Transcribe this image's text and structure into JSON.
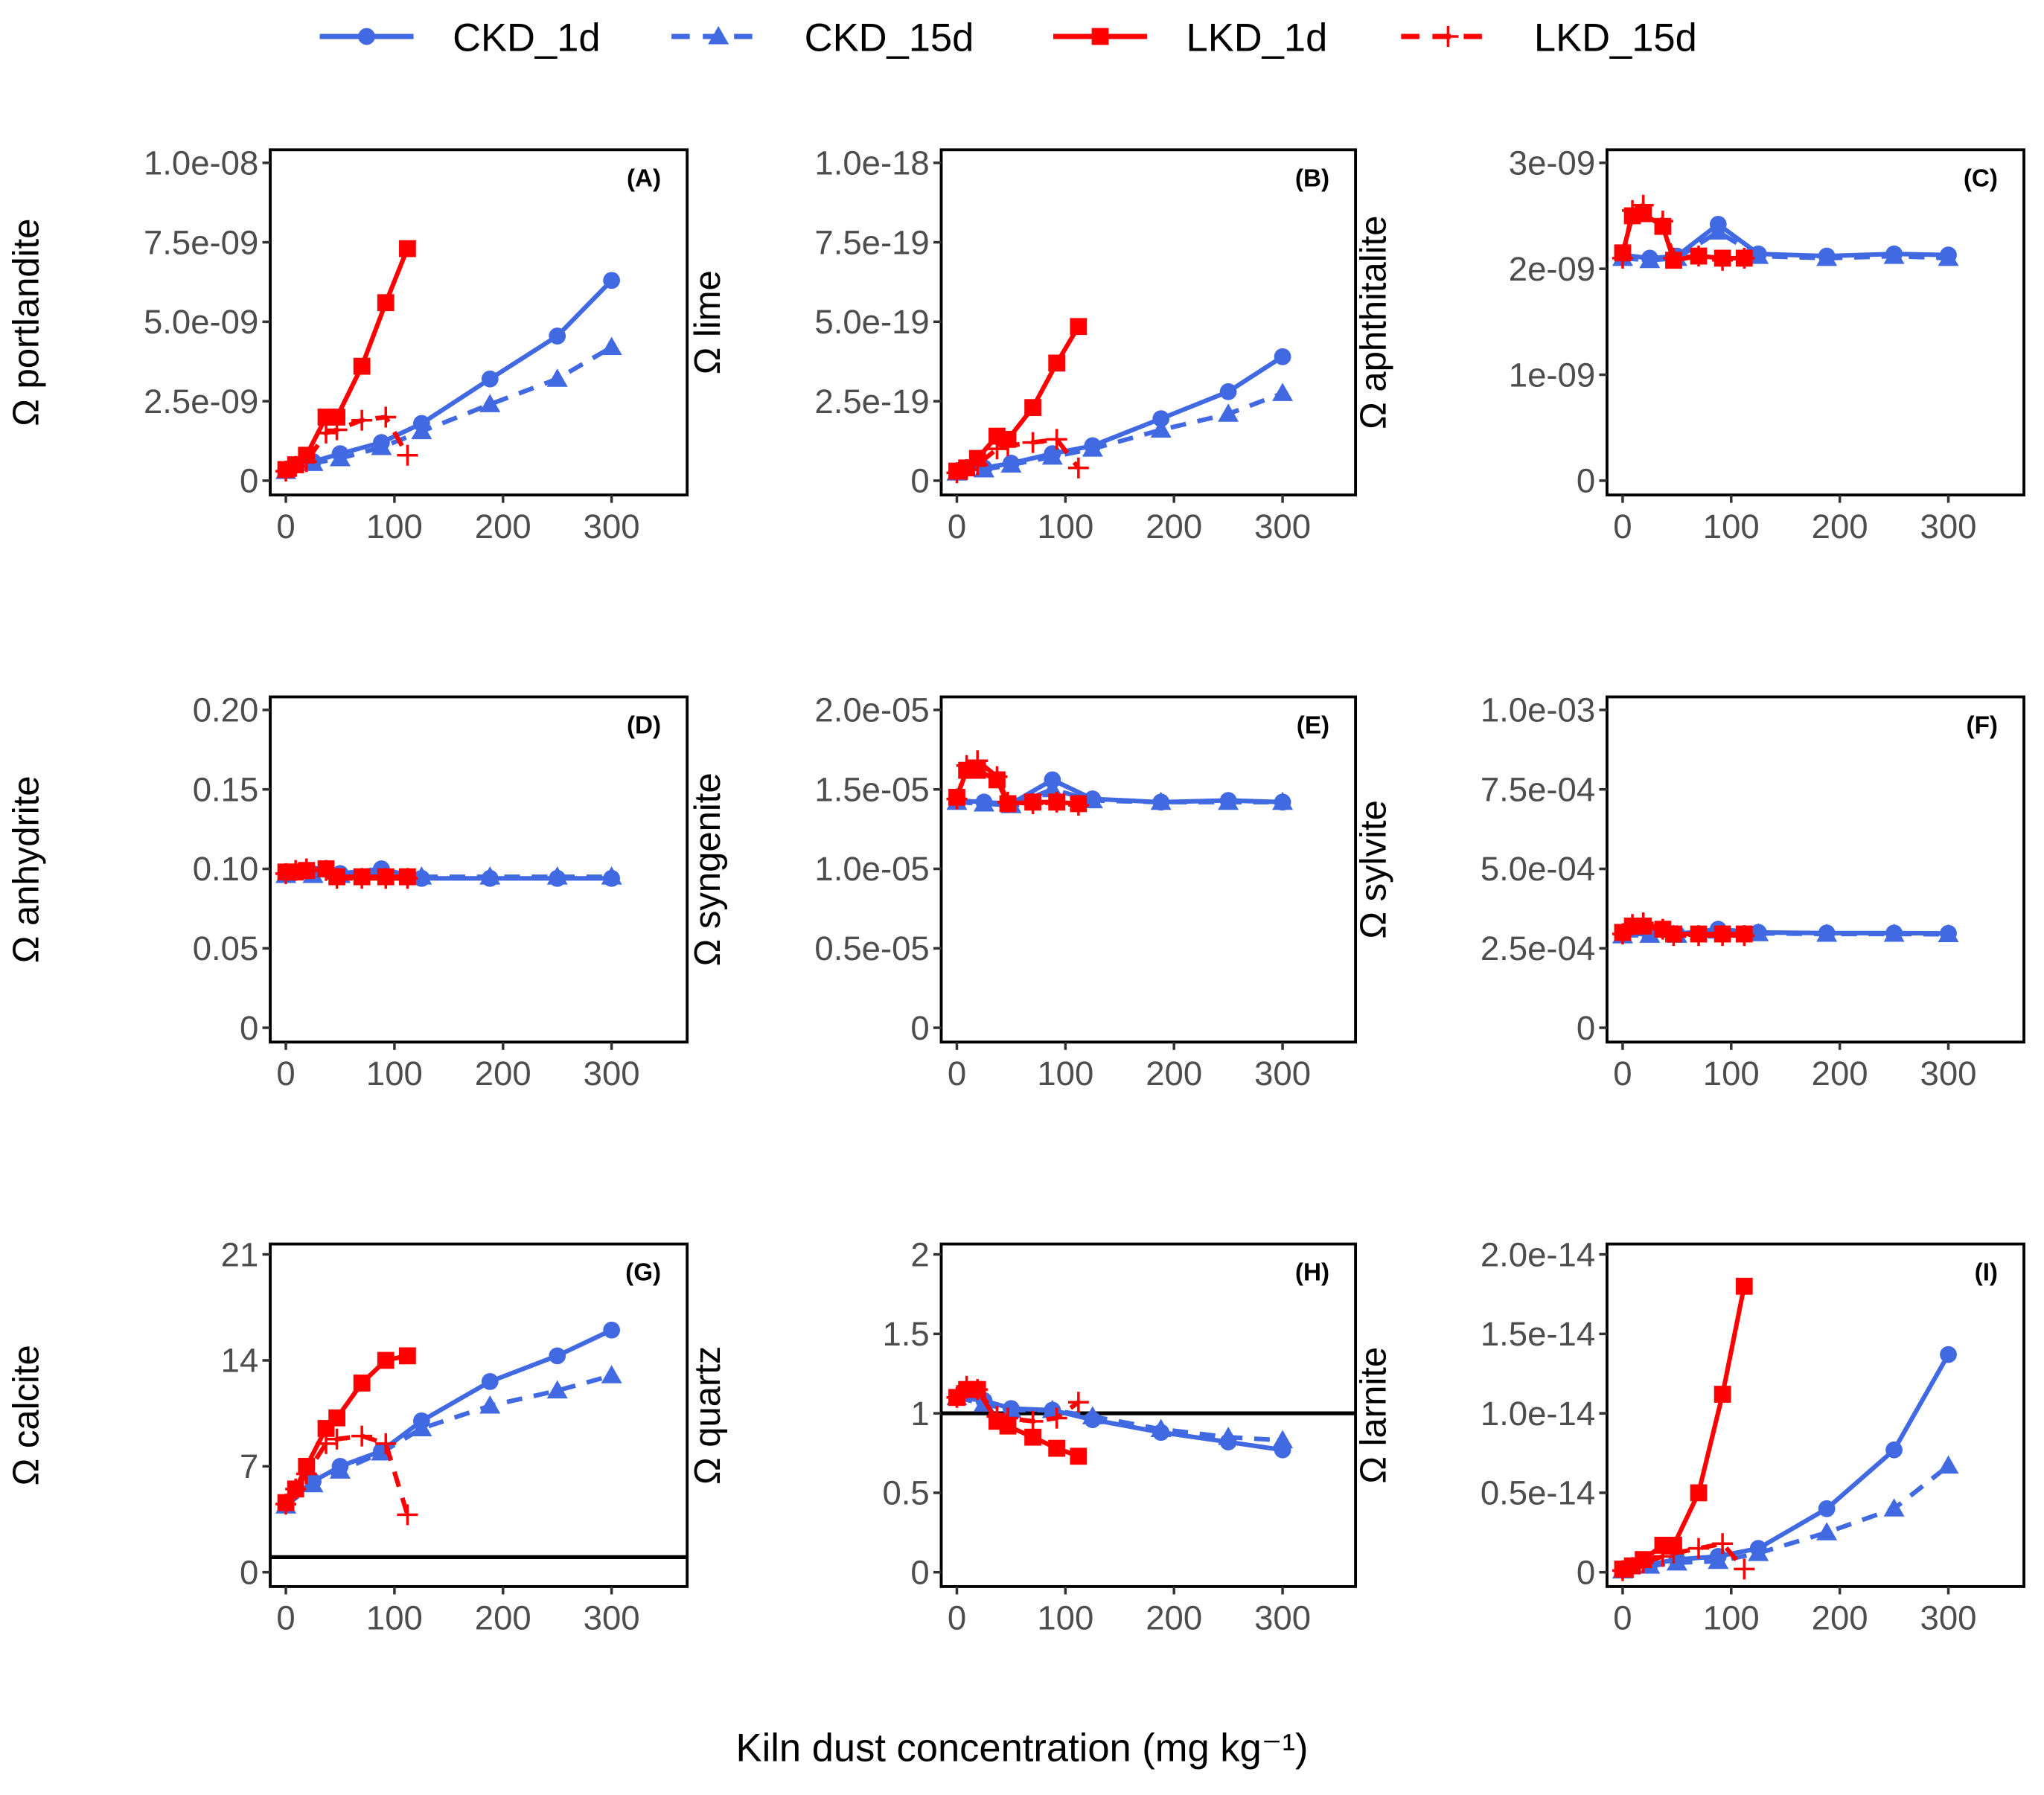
{
  "legend": {
    "placement": "top",
    "entries": [
      {
        "name": "CKD_1d",
        "color": "#4169E1",
        "marker": "circle",
        "line": "solid"
      },
      {
        "name": "CKD_15d",
        "color": "#4169E1",
        "marker": "triangle",
        "line": "dashed"
      },
      {
        "name": "LKD_1d",
        "color": "#FF0000",
        "marker": "square",
        "line": "solid"
      },
      {
        "name": "LKD_15d",
        "color": "#FF0000",
        "marker": "plus",
        "line": "dashed"
      }
    ]
  },
  "xlabel": "Kiln dust concentration (mg kg⁻¹)",
  "chart_data": {
    "type": "line",
    "grid": false,
    "x_ticks": [
      0,
      100,
      200,
      300
    ],
    "x_tick_labels": [
      "0",
      "100",
      "200",
      "300"
    ],
    "xlim": [
      -15,
      365
    ],
    "x": {
      "CKD": [
        0,
        25,
        50,
        88,
        125,
        188,
        250,
        300
      ],
      "LKD": [
        0,
        9,
        19,
        37,
        47,
        70,
        92,
        112
      ]
    },
    "panels": [
      {
        "tag": "(A)",
        "ylabel": "Ω portlandite",
        "ylim": [
          0,
          1e-08
        ],
        "yticks": [
          0,
          2.5e-09,
          5e-09,
          7.5e-09,
          1e-08
        ],
        "ytick_labels": [
          "0",
          "2.5e-09",
          "5.0e-09",
          "7.5e-09",
          "1.0e-08"
        ],
        "series": {
          "CKD_1d": [
            3.5e-10,
            6e-10,
            8.5e-10,
            1.2e-09,
            1.8e-09,
            3.2e-09,
            4.55e-09,
            6.3e-09
          ],
          "CKD_15d": [
            3e-10,
            5.5e-10,
            7e-10,
            1.05e-09,
            1.55e-09,
            2.4e-09,
            3.2e-09,
            4.2e-09
          ],
          "LKD_1d": [
            3.5e-10,
            5e-10,
            8e-10,
            2e-09,
            2e-09,
            3.6e-09,
            5.6e-09,
            7.3e-09
          ],
          "LKD_15d": [
            3e-10,
            4.5e-10,
            6e-10,
            1.5e-09,
            1.6e-09,
            1.9e-09,
            2e-09,
            8e-10
          ]
        }
      },
      {
        "tag": "(B)",
        "ylabel": "Ω lime",
        "ylim": [
          0,
          1e-18
        ],
        "yticks": [
          0,
          2.5e-19,
          5e-19,
          7.5e-19,
          1e-18
        ],
        "ytick_labels": [
          "0",
          "2.5e-19",
          "5.0e-19",
          "7.5e-19",
          "1.0e-18"
        ],
        "series": {
          "CKD_1d": [
            3e-20,
            4e-20,
            5.5e-20,
            8.5e-20,
            1.1e-19,
            1.95e-19,
            2.8e-19,
            3.9e-19
          ],
          "CKD_15d": [
            2.5e-20,
            3.5e-20,
            5e-20,
            7.5e-20,
            1e-19,
            1.6e-19,
            2.1e-19,
            2.75e-19
          ],
          "LKD_1d": [
            3e-20,
            4e-20,
            7e-20,
            1.4e-19,
            1.3e-19,
            2.3e-19,
            3.7e-19,
            4.85e-19
          ],
          "LKD_15d": [
            2.5e-20,
            3.5e-20,
            5e-20,
            1e-19,
            1.1e-19,
            1.2e-19,
            1.3e-19,
            4e-20
          ]
        }
      },
      {
        "tag": "(C)",
        "ylabel": "Ω aphthitalite",
        "ylim": [
          0,
          3e-09
        ],
        "yticks": [
          0,
          1e-09,
          2e-09,
          3e-09
        ],
        "ytick_labels": [
          "0",
          "1e-09",
          "2e-09",
          "3e-09"
        ],
        "series": {
          "CKD_1d": [
            2.13e-09,
            2.1e-09,
            2.12e-09,
            2.42e-09,
            2.14e-09,
            2.12e-09,
            2.14e-09,
            2.13e-09
          ],
          "CKD_15d": [
            2.1e-09,
            2.08e-09,
            2.1e-09,
            2.35e-09,
            2.12e-09,
            2.1e-09,
            2.12e-09,
            2.1e-09
          ],
          "LKD_1d": [
            2.15e-09,
            2.5e-09,
            2.52e-09,
            2.4e-09,
            2.08e-09,
            2.12e-09,
            2.1e-09,
            2.1e-09
          ],
          "LKD_15d": [
            2.1e-09,
            2.55e-09,
            2.6e-09,
            2.45e-09,
            2.1e-09,
            2.12e-09,
            2.08e-09,
            2.1e-09
          ]
        }
      },
      {
        "tag": "(D)",
        "ylabel": "Ω anhydrite",
        "ylim": [
          0,
          0.2
        ],
        "yticks": [
          0,
          0.05,
          0.1,
          0.15,
          0.2
        ],
        "ytick_labels": [
          "0",
          "0.05",
          "0.10",
          "0.15",
          "0.20"
        ],
        "series": {
          "CKD_1d": [
            0.097,
            0.097,
            0.097,
            0.1,
            0.094,
            0.094,
            0.094,
            0.094
          ],
          "CKD_15d": [
            0.096,
            0.096,
            0.096,
            0.098,
            0.095,
            0.095,
            0.095,
            0.095
          ],
          "LKD_1d": [
            0.098,
            0.098,
            0.099,
            0.1,
            0.095,
            0.095,
            0.095,
            0.095
          ],
          "LKD_15d": [
            0.097,
            0.099,
            0.1,
            0.099,
            0.094,
            0.094,
            0.094,
            0.094
          ]
        }
      },
      {
        "tag": "(E)",
        "ylabel": "Ω syngenite",
        "ylim": [
          0,
          2e-05
        ],
        "yticks": [
          0,
          5e-06,
          1e-05,
          1.5e-05,
          2e-05
        ],
        "ytick_labels": [
          "0",
          "0.5e-05",
          "1.0e-05",
          "1.5e-05",
          "2.0e-05"
        ],
        "series": {
          "CKD_1d": [
            1.43e-05,
            1.42e-05,
            1.41e-05,
            1.56e-05,
            1.44e-05,
            1.42e-05,
            1.43e-05,
            1.42e-05
          ],
          "CKD_15d": [
            1.42e-05,
            1.41e-05,
            1.4e-05,
            1.5e-05,
            1.43e-05,
            1.42e-05,
            1.42e-05,
            1.42e-05
          ],
          "LKD_1d": [
            1.45e-05,
            1.62e-05,
            1.62e-05,
            1.56e-05,
            1.41e-05,
            1.42e-05,
            1.42e-05,
            1.41e-05
          ],
          "LKD_15d": [
            1.44e-05,
            1.65e-05,
            1.68e-05,
            1.58e-05,
            1.42e-05,
            1.41e-05,
            1.42e-05,
            1.4e-05
          ]
        }
      },
      {
        "tag": "(F)",
        "ylabel": "Ω sylvite",
        "ylim": [
          0,
          0.001
        ],
        "yticks": [
          0,
          0.00025,
          0.0005,
          0.00075,
          0.001
        ],
        "ytick_labels": [
          "0",
          "2.5e-04",
          "5.0e-04",
          "7.5e-04",
          "1.0e-03"
        ],
        "series": {
          "CKD_1d": [
            0.000295,
            0.000295,
            0.000295,
            0.00031,
            0.0003,
            0.000298,
            0.000298,
            0.000297
          ],
          "CKD_15d": [
            0.00029,
            0.000292,
            0.000292,
            0.000305,
            0.000297,
            0.000295,
            0.000295,
            0.000294
          ],
          "LKD_1d": [
            0.0003,
            0.00032,
            0.00032,
            0.00031,
            0.000295,
            0.000295,
            0.000295,
            0.000295
          ],
          "LKD_15d": [
            0.000295,
            0.000325,
            0.00033,
            0.00031,
            0.00029,
            0.00029,
            0.00029,
            0.00029
          ]
        }
      },
      {
        "tag": "(G)",
        "ylabel": "Ω calcite",
        "ylim": [
          0,
          21
        ],
        "hline": 1,
        "yticks": [
          0,
          7,
          14,
          21
        ],
        "ytick_labels": [
          "0",
          "7",
          "14",
          "21"
        ],
        "series": {
          "CKD_1d": [
            4.5,
            6,
            7,
            8,
            10,
            12.6,
            14.3,
            16
          ],
          "CKD_15d": [
            4.4,
            5.8,
            6.7,
            7.9,
            9.5,
            11,
            12,
            13
          ],
          "LKD_1d": [
            4.6,
            5.5,
            7,
            9.5,
            10.2,
            12.5,
            14,
            14.3
          ],
          "LKD_15d": [
            4.5,
            5.5,
            6.5,
            8.5,
            8.8,
            9,
            8.5,
            3.8
          ]
        }
      },
      {
        "tag": "(H)",
        "ylabel": "Ω quartz",
        "ylim": [
          0,
          2
        ],
        "hline": 1,
        "yticks": [
          0,
          0.5,
          1,
          1.5,
          2
        ],
        "ytick_labels": [
          "0",
          "0.5",
          "1",
          "1.5",
          "2"
        ],
        "series": {
          "CKD_1d": [
            1.1,
            1.08,
            1.03,
            1.02,
            0.96,
            0.88,
            0.82,
            0.77
          ],
          "CKD_15d": [
            1.1,
            1.06,
            1.02,
            1.02,
            0.98,
            0.9,
            0.85,
            0.83
          ],
          "LKD_1d": [
            1.1,
            1.15,
            1.15,
            0.95,
            0.92,
            0.85,
            0.78,
            0.73
          ],
          "LKD_15d": [
            1.1,
            1.17,
            1.15,
            0.98,
            0.97,
            0.95,
            0.97,
            1.07
          ]
        }
      },
      {
        "tag": "(I)",
        "ylabel": "Ω larnite",
        "ylim": [
          0,
          2e-14
        ],
        "yticks": [
          0,
          5e-15,
          1e-14,
          1.5e-14,
          2e-14
        ],
        "ytick_labels": [
          "0",
          "0.5e-14",
          "1.0e-14",
          "1.5e-14",
          "2.0e-14"
        ],
        "series": {
          "CKD_1d": [
            2e-16,
            5e-16,
            8e-16,
            1e-15,
            1.5e-15,
            4e-15,
            7.7e-15,
            1.37e-14
          ],
          "CKD_15d": [
            1e-16,
            4e-16,
            6e-16,
            7e-16,
            1.2e-15,
            2.5e-15,
            4e-15,
            6.7e-15
          ],
          "LKD_1d": [
            2e-16,
            4e-16,
            8e-16,
            1.7e-15,
            1.7e-15,
            5e-15,
            1.12e-14,
            1.8e-14
          ],
          "LKD_15d": [
            1e-16,
            3e-16,
            6e-16,
            1e-15,
            1.2e-15,
            1.5e-15,
            1.8e-15,
            2e-16
          ]
        }
      }
    ]
  }
}
